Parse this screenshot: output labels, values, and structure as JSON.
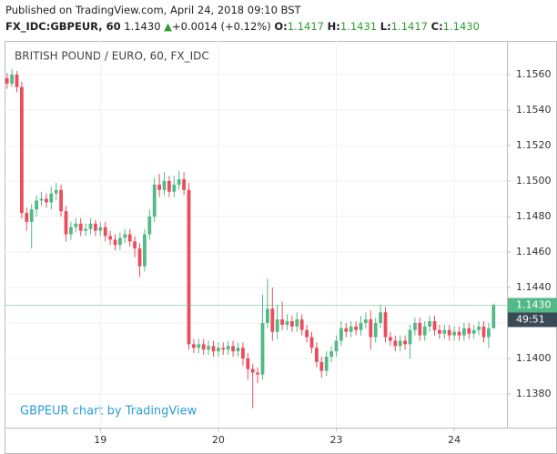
{
  "header": {
    "published": "Published on TradingView.com, April 24, 2018 09:10 BST",
    "symbol": "FX_IDC:GBPEUR, 60",
    "last": "1.1430",
    "arrow": "▲",
    "change": "+0.0014 (+0.12%)",
    "o_label": "O:",
    "o": "1.1417",
    "h_label": "H:",
    "h": "1.1431",
    "l_label": "L:",
    "l": "1.1417",
    "c_label": "C:",
    "c": "1.1430"
  },
  "chart_data": {
    "type": "candlestick",
    "title": "BRITISH POUND / EURO, 60, FX_IDC",
    "watermark": "GBPEUR chart by TradingView",
    "up_color": "#53b987",
    "down_color": "#eb4d5c",
    "last_price_label": "1.1430",
    "countdown": "49:51",
    "grid": true,
    "ylim": [
      1.1361,
      1.1579
    ],
    "yticks": [
      {
        "value": 1.138,
        "label": "1.1380"
      },
      {
        "value": 1.14,
        "label": "1.1400"
      },
      {
        "value": 1.142,
        "label": "1.1420"
      },
      {
        "value": 1.144,
        "label": "1.1440"
      },
      {
        "value": 1.146,
        "label": "1.1460"
      },
      {
        "value": 1.148,
        "label": "1.1480"
      },
      {
        "value": 1.15,
        "label": "1.1500"
      },
      {
        "value": 1.152,
        "label": "1.1520"
      },
      {
        "value": 1.154,
        "label": "1.1540"
      },
      {
        "value": 1.156,
        "label": "1.1560"
      }
    ],
    "categories": [
      null,
      null,
      null,
      null,
      null,
      null,
      null,
      null,
      null,
      null,
      null,
      null,
      null,
      null,
      null,
      null,
      null,
      null,
      null,
      "19",
      null,
      null,
      null,
      null,
      null,
      null,
      null,
      null,
      null,
      null,
      null,
      null,
      null,
      null,
      null,
      null,
      null,
      null,
      null,
      null,
      null,
      null,
      null,
      "20",
      null,
      null,
      null,
      null,
      null,
      null,
      null,
      null,
      null,
      null,
      null,
      null,
      null,
      null,
      null,
      null,
      null,
      null,
      null,
      null,
      null,
      null,
      null,
      "23",
      null,
      null,
      null,
      null,
      null,
      null,
      null,
      null,
      null,
      null,
      null,
      null,
      null,
      null,
      null,
      null,
      null,
      null,
      null,
      null,
      null,
      null,
      null,
      "24",
      null,
      null,
      null,
      null,
      null,
      null,
      null,
      null
    ],
    "open": [
      1.1558,
      1.1555,
      1.156,
      1.1553,
      1.1482,
      1.1477,
      1.1484,
      1.1489,
      1.149,
      1.1488,
      1.1493,
      1.1495,
      1.1483,
      1.147,
      1.1474,
      1.1476,
      1.1472,
      1.1473,
      1.1476,
      1.1472,
      1.1474,
      1.1469,
      1.1467,
      1.1464,
      1.1468,
      1.147,
      1.1466,
      1.1462,
      1.1452,
      1.147,
      1.148,
      1.1498,
      1.1495,
      1.15,
      1.1494,
      1.1498,
      1.1501,
      1.1495,
      1.1408,
      1.1406,
      1.1408,
      1.1405,
      1.1407,
      1.1404,
      1.1406,
      1.1405,
      1.1407,
      1.1404,
      1.1406,
      1.14,
      1.1394,
      1.1392,
      1.1391,
      1.142,
      1.1428,
      1.1415,
      1.1422,
      1.1419,
      1.1421,
      1.1418,
      1.1422,
      1.1416,
      1.1412,
      1.1406,
      1.1398,
      1.1393,
      1.1401,
      1.1404,
      1.141,
      1.1417,
      1.1415,
      1.1418,
      1.1416,
      1.142,
      1.1422,
      1.1412,
      1.142,
      1.1426,
      1.1412,
      1.141,
      1.1407,
      1.141,
      1.1408,
      1.1416,
      1.142,
      1.1413,
      1.1418,
      1.1421,
      1.1416,
      1.1414,
      1.1416,
      1.1413,
      1.1415,
      1.1413,
      1.1417,
      1.1414,
      1.1416,
      1.1418,
      1.1412,
      1.1417
    ],
    "high": [
      1.1561,
      1.1563,
      1.1562,
      1.1556,
      1.1485,
      1.1487,
      1.1492,
      1.1494,
      1.1493,
      1.1497,
      1.1499,
      1.1498,
      1.1486,
      1.1477,
      1.1479,
      1.1479,
      1.1476,
      1.1479,
      1.1478,
      1.1477,
      1.1477,
      1.1472,
      1.147,
      1.1471,
      1.1473,
      1.1473,
      1.1469,
      1.1465,
      1.1473,
      1.1484,
      1.1502,
      1.1504,
      1.1505,
      1.1503,
      1.1503,
      1.1506,
      1.1505,
      1.1499,
      1.1411,
      1.1411,
      1.1411,
      1.141,
      1.141,
      1.1409,
      1.1409,
      1.141,
      1.141,
      1.1409,
      1.1409,
      1.1403,
      1.1397,
      1.1395,
      1.1436,
      1.1445,
      1.144,
      1.143,
      1.1432,
      1.1425,
      1.1424,
      1.1426,
      1.1425,
      1.1419,
      1.1415,
      1.1409,
      1.1401,
      1.1404,
      1.1407,
      1.1413,
      1.1421,
      1.142,
      1.1421,
      1.1421,
      1.1424,
      1.1426,
      1.1427,
      1.1423,
      1.143,
      1.1429,
      1.1415,
      1.1413,
      1.1413,
      1.1413,
      1.1419,
      1.1423,
      1.1423,
      1.1421,
      1.1424,
      1.1424,
      1.1419,
      1.1419,
      1.1419,
      1.1418,
      1.1418,
      1.142,
      1.142,
      1.1419,
      1.1421,
      1.1421,
      1.142,
      1.1431
    ],
    "low": [
      1.1552,
      1.1553,
      1.155,
      1.1479,
      1.1472,
      1.1462,
      1.148,
      1.1486,
      1.1485,
      1.1484,
      1.1489,
      1.148,
      1.1466,
      1.1467,
      1.1471,
      1.1469,
      1.1469,
      1.147,
      1.1469,
      1.1469,
      1.1466,
      1.1464,
      1.1461,
      1.1461,
      1.1465,
      1.1463,
      1.1457,
      1.1446,
      1.1449,
      1.1467,
      1.1477,
      1.1491,
      1.1492,
      1.1491,
      1.1491,
      1.1495,
      1.1492,
      1.1405,
      1.1403,
      1.1403,
      1.1402,
      1.1402,
      1.1401,
      1.1401,
      1.1402,
      1.1402,
      1.1401,
      1.1401,
      1.1396,
      1.1388,
      1.1372,
      1.1386,
      1.1388,
      1.1417,
      1.141,
      1.1411,
      1.1416,
      1.1416,
      1.1415,
      1.1415,
      1.1413,
      1.1409,
      1.1403,
      1.1395,
      1.1389,
      1.139,
      1.1398,
      1.1401,
      1.1407,
      1.1412,
      1.1412,
      1.1413,
      1.1413,
      1.1417,
      1.1405,
      1.1409,
      1.1417,
      1.1409,
      1.1407,
      1.1404,
      1.1404,
      1.1405,
      1.14,
      1.1413,
      1.141,
      1.141,
      1.1415,
      1.1413,
      1.1411,
      1.1411,
      1.141,
      1.141,
      1.141,
      1.141,
      1.1411,
      1.1411,
      1.1413,
      1.1409,
      1.1406,
      1.1417
    ],
    "close": [
      1.1555,
      1.156,
      1.1553,
      1.1482,
      1.1477,
      1.1484,
      1.1489,
      1.149,
      1.1488,
      1.1493,
      1.1495,
      1.1483,
      1.147,
      1.1474,
      1.1476,
      1.1472,
      1.1473,
      1.1476,
      1.1472,
      1.1474,
      1.1469,
      1.1467,
      1.1464,
      1.1468,
      1.147,
      1.1466,
      1.1462,
      1.1452,
      1.147,
      1.148,
      1.1498,
      1.1495,
      1.15,
      1.1494,
      1.1498,
      1.1501,
      1.1495,
      1.1408,
      1.1406,
      1.1408,
      1.1405,
      1.1407,
      1.1404,
      1.1406,
      1.1405,
      1.1407,
      1.1404,
      1.1406,
      1.14,
      1.1394,
      1.1392,
      1.1391,
      1.142,
      1.1428,
      1.1415,
      1.1422,
      1.1419,
      1.1421,
      1.1418,
      1.1422,
      1.1416,
      1.1412,
      1.1406,
      1.1398,
      1.1393,
      1.1401,
      1.1404,
      1.141,
      1.1417,
      1.1415,
      1.1418,
      1.1416,
      1.142,
      1.1422,
      1.1412,
      1.142,
      1.1426,
      1.1412,
      1.141,
      1.1407,
      1.141,
      1.1408,
      1.1416,
      1.142,
      1.1413,
      1.1418,
      1.1421,
      1.1416,
      1.1414,
      1.1416,
      1.1413,
      1.1415,
      1.1413,
      1.1417,
      1.1414,
      1.1416,
      1.1418,
      1.1412,
      1.1417,
      1.143
    ]
  }
}
